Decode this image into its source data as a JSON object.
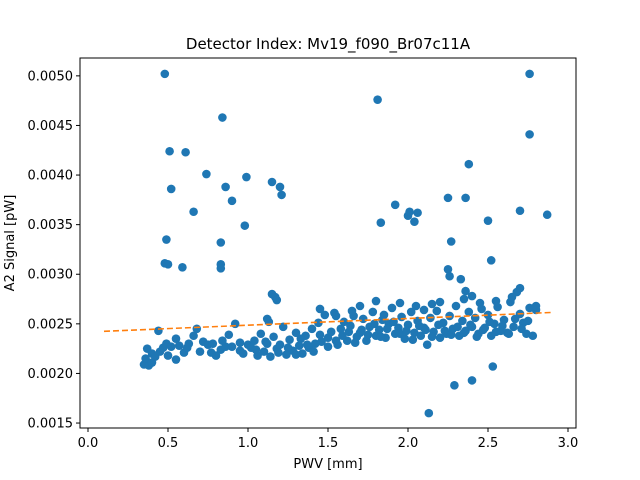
{
  "chart_data": {
    "type": "scatter",
    "title": "Detector Index: Mv19_f090_Br07c11A",
    "xlabel": "PWV [mm]",
    "ylabel": "A2 Signal [pW]",
    "xlim": [
      -0.05,
      3.05
    ],
    "ylim": [
      0.00145,
      0.00518
    ],
    "xticks": [
      0.0,
      0.5,
      1.0,
      1.5,
      2.0,
      2.5,
      3.0
    ],
    "xtick_labels": [
      "0.0",
      "0.5",
      "1.0",
      "1.5",
      "2.0",
      "2.5",
      "3.0"
    ],
    "yticks": [
      0.0015,
      0.002,
      0.0025,
      0.003,
      0.0035,
      0.004,
      0.0045,
      0.005
    ],
    "ytick_labels": [
      "0.0015",
      "0.0020",
      "0.0025",
      "0.0030",
      "0.0035",
      "0.0040",
      "0.0045",
      "0.0050"
    ],
    "series": [
      {
        "name": "data",
        "color": "#1f77b4",
        "points": [
          [
            0.48,
            0.00502
          ],
          [
            0.84,
            0.00458
          ],
          [
            0.51,
            0.00424
          ],
          [
            0.61,
            0.00423
          ],
          [
            0.74,
            0.00401
          ],
          [
            0.52,
            0.00386
          ],
          [
            0.86,
            0.00388
          ],
          [
            0.99,
            0.00398
          ],
          [
            0.9,
            0.00374
          ],
          [
            0.66,
            0.00363
          ],
          [
            0.98,
            0.00349
          ],
          [
            0.49,
            0.00335
          ],
          [
            0.83,
            0.00332
          ],
          [
            0.48,
            0.00311
          ],
          [
            0.5,
            0.0031
          ],
          [
            0.59,
            0.00307
          ],
          [
            0.83,
            0.0031
          ],
          [
            0.83,
            0.00306
          ],
          [
            1.15,
            0.00393
          ],
          [
            1.2,
            0.00388
          ],
          [
            1.21,
            0.0038
          ],
          [
            1.15,
            0.0028
          ],
          [
            1.17,
            0.00277
          ],
          [
            1.18,
            0.00274
          ],
          [
            1.12,
            0.00255
          ],
          [
            1.13,
            0.00252
          ],
          [
            1.81,
            0.00476
          ],
          [
            1.83,
            0.00352
          ],
          [
            1.92,
            0.0037
          ],
          [
            2.0,
            0.00359
          ],
          [
            2.01,
            0.00363
          ],
          [
            2.06,
            0.00362
          ],
          [
            2.04,
            0.00353
          ],
          [
            2.25,
            0.00377
          ],
          [
            2.36,
            0.00377
          ],
          [
            2.38,
            0.00411
          ],
          [
            2.27,
            0.00333
          ],
          [
            2.5,
            0.00354
          ],
          [
            2.52,
            0.00314
          ],
          [
            2.25,
            0.00305
          ],
          [
            2.26,
            0.00298
          ],
          [
            2.33,
            0.00295
          ],
          [
            2.36,
            0.00283
          ],
          [
            2.7,
            0.00364
          ],
          [
            2.76,
            0.00502
          ],
          [
            2.76,
            0.00441
          ],
          [
            2.87,
            0.0036
          ],
          [
            2.13,
            0.0016
          ],
          [
            2.29,
            0.00188
          ],
          [
            2.4,
            0.00193
          ],
          [
            2.53,
            0.00207
          ],
          [
            0.35,
            0.00209
          ],
          [
            0.36,
            0.00215
          ],
          [
            0.37,
            0.00225
          ],
          [
            0.38,
            0.00208
          ],
          [
            0.4,
            0.0022
          ],
          [
            0.42,
            0.00217
          ],
          [
            0.44,
            0.00243
          ],
          [
            0.45,
            0.00222
          ],
          [
            0.47,
            0.00226
          ],
          [
            0.49,
            0.0023
          ],
          [
            0.5,
            0.00218
          ],
          [
            0.52,
            0.00227
          ],
          [
            0.55,
            0.00235
          ],
          [
            0.57,
            0.00228
          ],
          [
            0.6,
            0.00221
          ],
          [
            0.63,
            0.0023
          ],
          [
            0.66,
            0.00238
          ],
          [
            0.68,
            0.00245
          ],
          [
            0.7,
            0.00222
          ],
          [
            0.72,
            0.00232
          ],
          [
            0.75,
            0.00229
          ],
          [
            0.78,
            0.0023
          ],
          [
            0.8,
            0.00218
          ],
          [
            0.83,
            0.00224
          ],
          [
            0.86,
            0.00227
          ],
          [
            0.88,
            0.00239
          ],
          [
            0.9,
            0.00227
          ],
          [
            0.92,
            0.0025
          ],
          [
            0.95,
            0.00223
          ],
          [
            0.97,
            0.0022
          ],
          [
            1.0,
            0.00229
          ],
          [
            1.02,
            0.00226
          ],
          [
            1.04,
            0.00233
          ],
          [
            1.06,
            0.00218
          ],
          [
            1.08,
            0.0024
          ],
          [
            1.1,
            0.00222
          ],
          [
            1.12,
            0.0023
          ],
          [
            1.14,
            0.00217
          ],
          [
            1.16,
            0.00237
          ],
          [
            1.18,
            0.00225
          ],
          [
            1.2,
            0.00229
          ],
          [
            1.22,
            0.00247
          ],
          [
            1.24,
            0.00219
          ],
          [
            1.26,
            0.00234
          ],
          [
            1.28,
            0.00223
          ],
          [
            1.3,
            0.00241
          ],
          [
            1.32,
            0.00228
          ],
          [
            1.34,
            0.0022
          ],
          [
            1.36,
            0.00238
          ],
          [
            1.38,
            0.00226
          ],
          [
            1.4,
            0.00245
          ],
          [
            1.42,
            0.0023
          ],
          [
            1.44,
            0.00251
          ],
          [
            1.46,
            0.00232
          ],
          [
            1.48,
            0.00259
          ],
          [
            1.5,
            0.00236
          ],
          [
            1.52,
            0.00242
          ],
          [
            1.54,
            0.00261
          ],
          [
            1.56,
            0.00229
          ],
          [
            1.58,
            0.00245
          ],
          [
            1.6,
            0.00252
          ],
          [
            1.62,
            0.00233
          ],
          [
            1.64,
            0.00248
          ],
          [
            1.66,
            0.00258
          ],
          [
            1.68,
            0.00237
          ],
          [
            1.7,
            0.00241
          ],
          [
            1.72,
            0.00255
          ],
          [
            1.74,
            0.00233
          ],
          [
            1.76,
            0.00247
          ],
          [
            1.78,
            0.00262
          ],
          [
            1.8,
            0.00238
          ],
          [
            1.82,
            0.00244
          ],
          [
            1.84,
            0.00254
          ],
          [
            1.86,
            0.00236
          ],
          [
            1.88,
            0.0025
          ],
          [
            1.9,
            0.00266
          ],
          [
            1.92,
            0.0024
          ],
          [
            1.94,
            0.00246
          ],
          [
            1.96,
            0.00257
          ],
          [
            1.98,
            0.00235
          ],
          [
            2.0,
            0.00249
          ],
          [
            2.02,
            0.00262
          ],
          [
            2.04,
            0.00241
          ],
          [
            2.06,
            0.00253
          ],
          [
            2.08,
            0.00238
          ],
          [
            2.1,
            0.00246
          ],
          [
            2.12,
            0.00229
          ],
          [
            2.14,
            0.00256
          ],
          [
            2.16,
            0.00242
          ],
          [
            2.18,
            0.00263
          ],
          [
            2.2,
            0.00236
          ],
          [
            2.22,
            0.00251
          ],
          [
            2.24,
            0.0024
          ],
          [
            2.26,
            0.00258
          ],
          [
            2.28,
            0.00245
          ],
          [
            2.3,
            0.00268
          ],
          [
            2.32,
            0.00238
          ],
          [
            2.34,
            0.00253
          ],
          [
            2.36,
            0.00243
          ],
          [
            2.38,
            0.00262
          ],
          [
            2.4,
            0.00247
          ],
          [
            2.42,
            0.00256
          ],
          [
            2.44,
            0.0024
          ],
          [
            2.46,
            0.00265
          ],
          [
            2.48,
            0.00246
          ],
          [
            2.5,
            0.00259
          ],
          [
            2.52,
            0.00238
          ],
          [
            2.54,
            0.0025
          ],
          [
            2.56,
            0.00267
          ],
          [
            2.58,
            0.00243
          ],
          [
            2.6,
            0.00254
          ],
          [
            2.62,
            0.00241
          ],
          [
            2.64,
            0.00272
          ],
          [
            2.66,
            0.00247
          ],
          [
            2.68,
            0.00282
          ],
          [
            2.7,
            0.0026
          ],
          [
            2.72,
            0.00251
          ],
          [
            2.74,
            0.0024
          ],
          [
            2.76,
            0.00266
          ],
          [
            2.78,
            0.00238
          ],
          [
            2.8,
            0.00264
          ],
          [
            0.4,
            0.00211
          ],
          [
            0.55,
            0.00214
          ],
          [
            0.62,
            0.00226
          ],
          [
            0.77,
            0.00221
          ],
          [
            0.84,
            0.00233
          ],
          [
            0.95,
            0.00231
          ],
          [
            1.05,
            0.00224
          ],
          [
            1.11,
            0.00232
          ],
          [
            1.19,
            0.00221
          ],
          [
            1.25,
            0.00226
          ],
          [
            1.3,
            0.00219
          ],
          [
            1.33,
            0.00235
          ],
          [
            1.37,
            0.00229
          ],
          [
            1.41,
            0.00222
          ],
          [
            1.45,
            0.00239
          ],
          [
            1.5,
            0.00227
          ],
          [
            1.55,
            0.00233
          ],
          [
            1.59,
            0.00238
          ],
          [
            1.63,
            0.00242
          ],
          [
            1.67,
            0.00231
          ],
          [
            1.71,
            0.00244
          ],
          [
            1.75,
            0.00239
          ],
          [
            1.79,
            0.0025
          ],
          [
            1.83,
            0.00237
          ],
          [
            1.87,
            0.00245
          ],
          [
            1.91,
            0.00252
          ],
          [
            1.95,
            0.0024
          ],
          [
            1.99,
            0.00243
          ],
          [
            2.03,
            0.00234
          ],
          [
            2.07,
            0.00248
          ],
          [
            2.11,
            0.00244
          ],
          [
            2.15,
            0.00237
          ],
          [
            2.19,
            0.00249
          ],
          [
            2.23,
            0.00243
          ],
          [
            2.27,
            0.00239
          ],
          [
            2.31,
            0.00247
          ],
          [
            2.35,
            0.00241
          ],
          [
            2.39,
            0.00249
          ],
          [
            2.43,
            0.00237
          ],
          [
            2.47,
            0.00244
          ],
          [
            2.51,
            0.00252
          ],
          [
            2.55,
            0.00242
          ],
          [
            2.59,
            0.00248
          ],
          [
            2.63,
            0.0024
          ],
          [
            2.67,
            0.00255
          ],
          [
            2.71,
            0.00245
          ],
          [
            2.75,
            0.00253
          ],
          [
            1.45,
            0.00265
          ],
          [
            1.55,
            0.00258
          ],
          [
            1.65,
            0.00263
          ],
          [
            1.7,
            0.00268
          ],
          [
            1.8,
            0.00273
          ],
          [
            1.85,
            0.00259
          ],
          [
            1.95,
            0.00271
          ],
          [
            2.05,
            0.00268
          ],
          [
            2.1,
            0.00264
          ],
          [
            2.2,
            0.00272
          ],
          [
            2.35,
            0.00275
          ],
          [
            2.45,
            0.00271
          ],
          [
            2.55,
            0.00273
          ],
          [
            2.65,
            0.00277
          ],
          [
            2.7,
            0.00286
          ],
          [
            2.8,
            0.00268
          ],
          [
            2.15,
            0.0027
          ],
          [
            2.4,
            0.00278
          ]
        ]
      },
      {
        "name": "fit",
        "type": "line",
        "style": "dashed",
        "color": "#ff7f0e",
        "points": [
          [
            0.1,
            0.002425
          ],
          [
            2.9,
            0.002615
          ]
        ]
      }
    ]
  }
}
